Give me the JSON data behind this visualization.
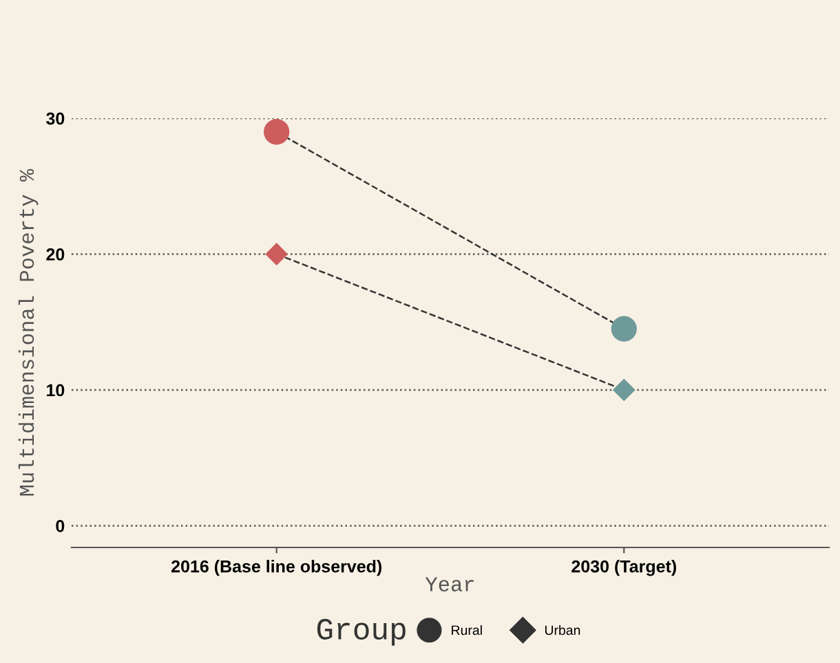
{
  "chart_data": {
    "type": "line",
    "xlabel": "Year",
    "ylabel": "Multidimensional Poverty %",
    "legend_title": "Group",
    "categories": [
      "2016 (Base line observed)",
      "2030 (Target)"
    ],
    "series": [
      {
        "name": "Rural",
        "color": "#333333",
        "colors": [
          "#cd5c5c",
          "#6e9a9a"
        ],
        "marker": "circle",
        "values": [
          29,
          14.5
        ]
      },
      {
        "name": "Urban",
        "color": "#333333",
        "colors": [
          "#cd5c5c",
          "#6e9a9a"
        ],
        "marker": "diamond",
        "values": [
          20,
          10
        ]
      }
    ],
    "line_style": "dashed",
    "ylim": [
      -1.6,
      30
    ],
    "yticks": [
      0,
      10,
      20,
      30
    ],
    "grid": "y",
    "legend": "bottom"
  }
}
